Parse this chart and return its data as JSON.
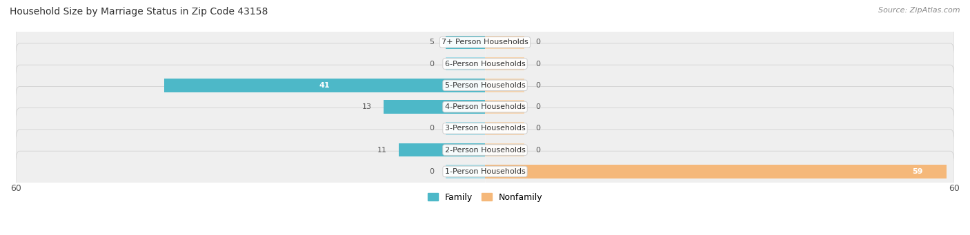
{
  "title": "Household Size by Marriage Status in Zip Code 43158",
  "source": "Source: ZipAtlas.com",
  "categories": [
    "7+ Person Households",
    "6-Person Households",
    "5-Person Households",
    "4-Person Households",
    "3-Person Households",
    "2-Person Households",
    "1-Person Households"
  ],
  "family_values": [
    5,
    0,
    41,
    13,
    0,
    11,
    0
  ],
  "nonfamily_values": [
    0,
    0,
    0,
    0,
    0,
    0,
    59
  ],
  "family_color": "#4db8c8",
  "family_color_light": "#a8dce6",
  "nonfamily_color": "#f5b87a",
  "nonfamily_color_light": "#f5d4b0",
  "row_bg_color": "#efefef",
  "row_border_color": "#d8d8d8",
  "xlim": 60,
  "stub_size": 5,
  "title_fontsize": 10,
  "bar_label_fontsize": 8,
  "cat_label_fontsize": 8,
  "tick_fontsize": 9,
  "legend_fontsize": 9,
  "source_fontsize": 8
}
